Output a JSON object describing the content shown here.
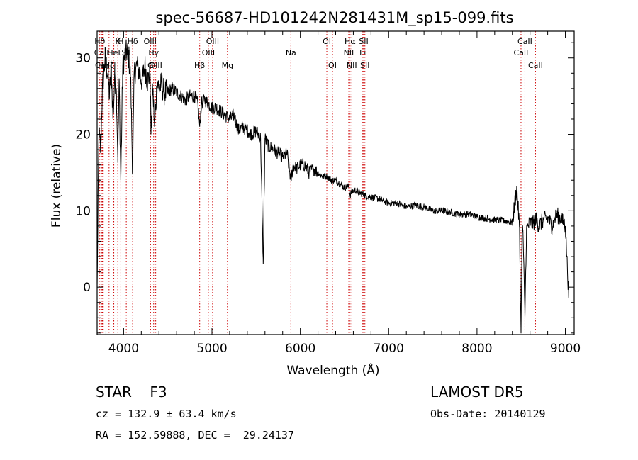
{
  "chart_data": {
    "type": "line",
    "title": "spec-56687-HD101242N281431M_sp15-099.fits",
    "xlabel": "Wavelength (Å)",
    "ylabel": "Flux (relative)",
    "xlim": [
      3700,
      9100
    ],
    "ylim": [
      -6.2,
      33.5
    ],
    "xticks": [
      4000,
      5000,
      6000,
      7000,
      8000,
      9000
    ],
    "yticks": [
      0,
      10,
      20,
      30
    ],
    "grid": false,
    "line_color": "#000000",
    "marker_color": "#cc0000",
    "series": [
      {
        "x": [
          3700,
          3720,
          3740,
          3760,
          3790,
          3820,
          3840,
          3860,
          3880,
          3900,
          3920,
          3934,
          3950,
          3968,
          3990,
          4010,
          4040,
          4060,
          4080,
          4102,
          4120,
          4150,
          4180,
          4210,
          4240,
          4270,
          4300,
          4310,
          4330,
          4350,
          4380,
          4400,
          4430,
          4460,
          4500,
          4550,
          4600,
          4650,
          4700,
          4750,
          4800,
          4840,
          4861,
          4880,
          4920,
          4960,
          5000,
          5050,
          5100,
          5150,
          5200,
          5250,
          5300,
          5350,
          5400,
          5450,
          5500,
          5550,
          5580,
          5600,
          5640,
          5700,
          5750,
          5800,
          5850,
          5893,
          5920,
          5960,
          6000,
          6050,
          6100,
          6150,
          6200,
          6250,
          6300,
          6350,
          6400,
          6450,
          6500,
          6550,
          6563,
          6580,
          6620,
          6680,
          6740,
          6800,
          6900,
          7000,
          7100,
          7200,
          7300,
          7400,
          7500,
          7600,
          7700,
          7800,
          7900,
          8000,
          8100,
          8200,
          8300,
          8400,
          8450,
          8480,
          8498,
          8510,
          8520,
          8542,
          8560,
          8600,
          8640,
          8662,
          8700,
          8750,
          8800,
          8850,
          8900,
          8950,
          9000,
          9040
        ],
        "y": [
          0,
          20,
          18,
          26,
          30,
          28,
          25,
          29,
          22,
          28,
          25,
          17,
          27,
          14,
          29,
          30,
          31,
          30,
          27,
          15,
          28,
          29,
          28,
          27,
          29,
          27,
          28,
          20,
          26,
          21,
          27,
          26,
          26.5,
          25.5,
          25.5,
          26,
          25.5,
          25,
          24.5,
          25,
          25,
          24,
          21,
          24,
          24.5,
          24,
          23.5,
          23.5,
          23,
          22.5,
          22,
          22.5,
          20.5,
          21,
          20.5,
          20,
          20.5,
          19.5,
          3,
          19.5,
          18.5,
          18,
          17.5,
          17,
          17.5,
          14,
          16,
          15.5,
          16,
          16,
          15,
          15.5,
          15,
          14.5,
          14.5,
          14,
          14,
          13.5,
          13,
          13.2,
          12,
          12.5,
          12.7,
          12.3,
          12,
          11.8,
          11.5,
          11,
          11,
          10.5,
          10.7,
          10.5,
          10,
          10,
          9.8,
          9.5,
          9.6,
          9.2,
          9,
          8.8,
          8.7,
          8.5,
          13,
          8,
          -6,
          7,
          7.5,
          -4,
          7.5,
          8.5,
          8.3,
          9,
          8,
          8.8,
          9,
          8,
          9.5,
          9,
          8,
          -1.5
        ]
      }
    ],
    "lines": [
      {
        "name": "Hθ",
        "x": 3730,
        "row": 1
      },
      {
        "name": "CaII",
        "x": 3750,
        "row": 2
      },
      {
        "name": "CaII",
        "x": 3760,
        "row": 3
      },
      {
        "name": "Hη",
        "x": 3770,
        "row": 3
      },
      {
        "name": "Hζ",
        "x": 3835,
        "row": 3
      },
      {
        "name": "K",
        "x": 3934,
        "row": 1
      },
      {
        "name": "H",
        "x": 3968,
        "row": 1
      },
      {
        "name": "HeI",
        "x": 3889,
        "row": 2
      },
      {
        "name": "SII",
        "x": 4030,
        "row": 2
      },
      {
        "name": "Hδ",
        "x": 4102,
        "row": 1
      },
      {
        "name": "OIII",
        "x": 4300,
        "row": 1
      },
      {
        "name": "Hγ",
        "x": 4340,
        "row": 2
      },
      {
        "name": "G",
        "x": 4305,
        "row": 3
      },
      {
        "name": "OIII",
        "x": 4363,
        "row": 3
      },
      {
        "name": "Hβ",
        "x": 4861,
        "row": 3
      },
      {
        "name": "OIII",
        "x": 4959,
        "row": 2
      },
      {
        "name": "OIII",
        "x": 5007,
        "row": 1
      },
      {
        "name": "Mg",
        "x": 5175,
        "row": 3
      },
      {
        "name": "Na",
        "x": 5893,
        "row": 2
      },
      {
        "name": "OI",
        "x": 6300,
        "row": 1
      },
      {
        "name": "OI",
        "x": 6364,
        "row": 3
      },
      {
        "name": "Hα",
        "x": 6563,
        "row": 1
      },
      {
        "name": "NII",
        "x": 6548,
        "row": 2
      },
      {
        "name": "NII",
        "x": 6583,
        "row": 3
      },
      {
        "name": "SII",
        "x": 6717,
        "row": 1
      },
      {
        "name": "Li",
        "x": 6707,
        "row": 2
      },
      {
        "name": "SII",
        "x": 6731,
        "row": 3
      },
      {
        "name": "CaII",
        "x": 8498,
        "row": 2
      },
      {
        "name": "CaII",
        "x": 8542,
        "row": 1
      },
      {
        "name": "CaII",
        "x": 8662,
        "row": 3
      }
    ]
  },
  "info": {
    "left_line1": "STAR    F3",
    "left_line2": "cz = 132.9 ± 63.4 km/s",
    "left_line3": "RA = 152.59888, DEC =  29.24137",
    "right_line1": "LAMOST DR5",
    "right_line2": "Obs-Date: 20140129"
  }
}
